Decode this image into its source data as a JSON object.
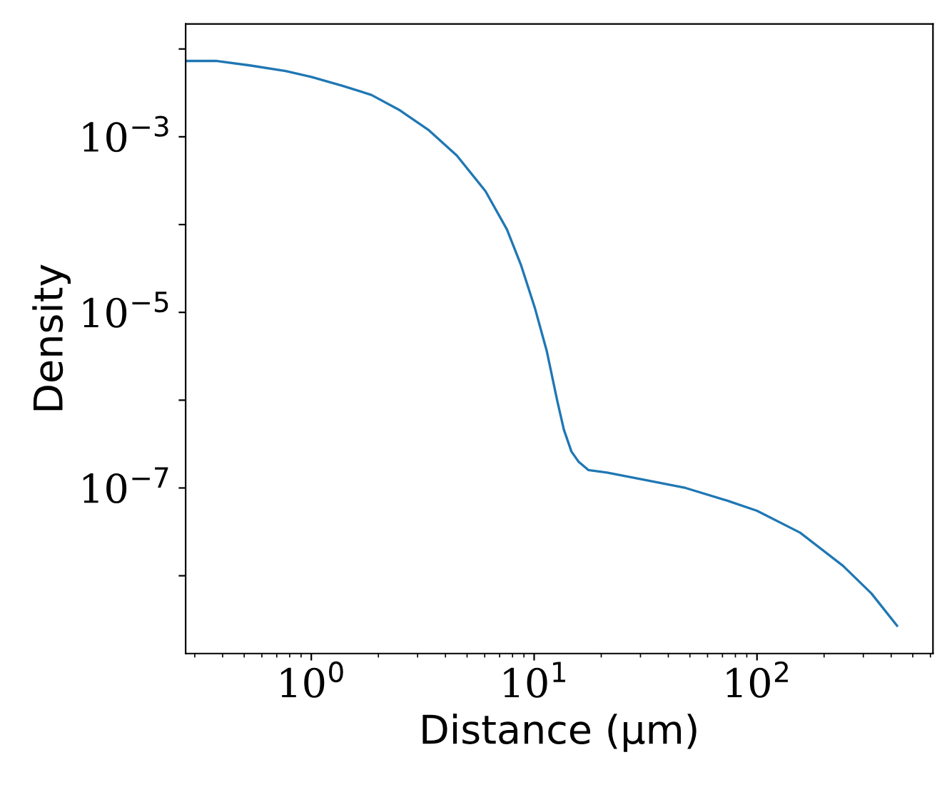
{
  "chart_data": {
    "type": "line",
    "xlabel": "Distance (μm)",
    "ylabel": "Density",
    "log": "xy",
    "grid": false,
    "marker": "none",
    "line_style": "solid",
    "x": [
      0.273,
      0.378,
      0.53,
      0.767,
      1,
      1.38,
      1.86,
      2.5,
      3.35,
      4.5,
      6.05,
      7.55,
      8.75,
      10.1,
      11.4,
      12.7,
      13.6,
      14.7,
      15.8,
      17.5,
      21.2,
      30.7,
      47.8,
      74.5,
      100,
      156,
      243,
      326,
      425
    ],
    "series": [
      {
        "color": "#1f77b4",
        "values": [
          0.0073,
          0.0073,
          0.0065,
          0.0056,
          0.0048,
          0.0038,
          0.003,
          0.002,
          0.0012,
          0.00061,
          0.00024,
          8.8e-05,
          3.4e-05,
          1.1e-05,
          3.6e-06,
          9.8e-07,
          4.6e-07,
          2.6e-07,
          2e-07,
          1.6e-07,
          1.5e-07,
          1.25e-07,
          1e-07,
          7.1e-08,
          5.5e-08,
          3.1e-08,
          1.3e-08,
          6.3e-09,
          2.7e-09
        ]
      }
    ],
    "xlim": [
      0.273,
      616
    ],
    "ylim": [
      1.3e-09,
      0.0193
    ],
    "xticks": [
      {
        "value": 1,
        "label": "10$^{0}$"
      },
      {
        "value": 10,
        "label": "10$^{1}$"
      },
      {
        "value": 100,
        "label": "10$^{2}$"
      }
    ],
    "yticks": [
      {
        "value": 1e-08,
        "label": null
      },
      {
        "value": 1e-07,
        "label": "10$^{−7}$"
      },
      {
        "value": 1e-06,
        "label": null
      },
      {
        "value": 1e-05,
        "label": "10$^{−5}$"
      },
      {
        "value": 0.0001,
        "label": null
      },
      {
        "value": 0.001,
        "label": "10$^{−3}$"
      },
      {
        "value": 0.01,
        "label": null
      }
    ]
  }
}
